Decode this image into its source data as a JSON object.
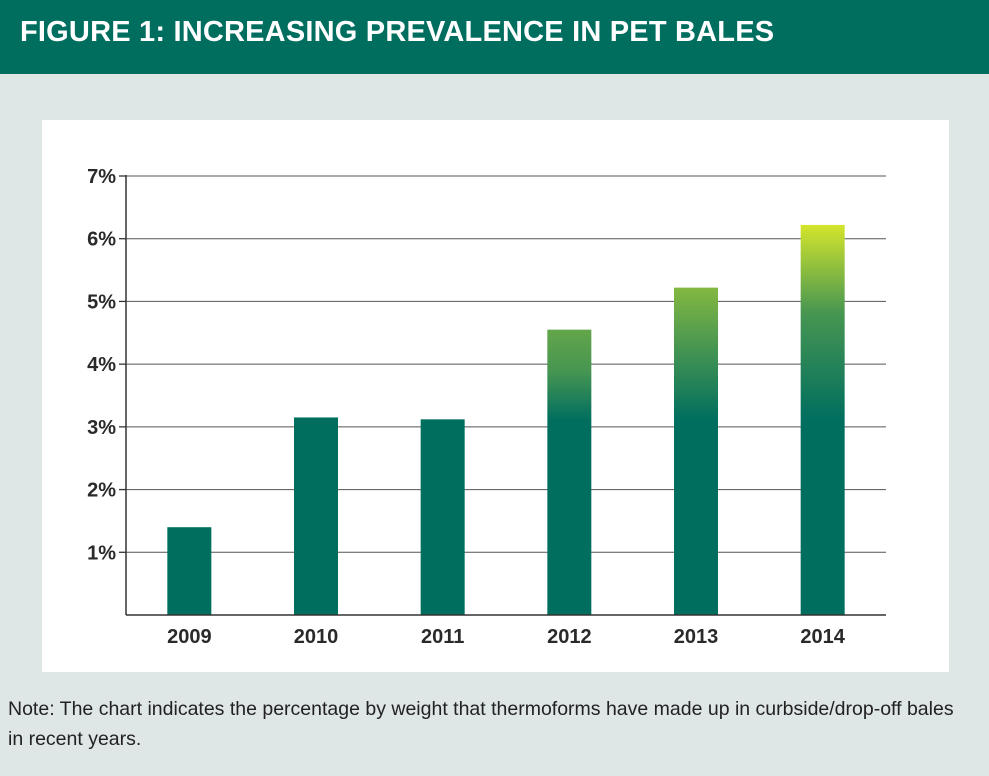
{
  "header": {
    "title": "FIGURE 1:  INCREASING PREVALENCE IN PET BALES"
  },
  "note": {
    "text": "Note:  The chart indicates the percentage by weight that thermoforms have made up in curbside/drop-off bales in recent years."
  },
  "colors": {
    "header_bg": "#006e5f",
    "bar_base": "#006e5f",
    "bar_mid": "#4f9a4f",
    "bar_top_light": "#d4e52c",
    "grid": "#555555",
    "background": "#dfe6e6"
  },
  "chart_data": {
    "type": "bar",
    "categories": [
      "2009",
      "2010",
      "2011",
      "2012",
      "2013",
      "2014"
    ],
    "values": [
      1.4,
      3.15,
      3.12,
      4.55,
      5.22,
      6.22
    ],
    "ylim": [
      0,
      7
    ],
    "yticks": [
      "1%",
      "2%",
      "3%",
      "4%",
      "5%",
      "6%",
      "7%"
    ],
    "grid": true,
    "title": "",
    "xlabel": "",
    "ylabel": ""
  }
}
